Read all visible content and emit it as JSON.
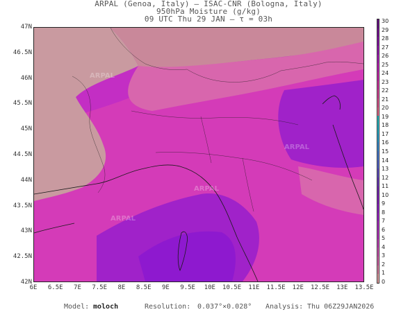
{
  "header": {
    "line1": "ARPAL (Genoa, Italy)  —  ISAC-CNR (Bologna, Italy)",
    "line2": "950hPa Moisture (g/kg)",
    "line3": "09 UTC Thu 29 JAN  —  τ = 03h"
  },
  "map": {
    "lat_labels": [
      "47N",
      "46.5N",
      "46N",
      "45.5N",
      "45N",
      "44.5N",
      "44N",
      "43.5N",
      "43N",
      "42.5N",
      "42N"
    ],
    "lon_labels": [
      "6E",
      "6.5E",
      "7E",
      "7.5E",
      "8E",
      "8.5E",
      "9E",
      "9.5E",
      "10E",
      "10.5E",
      "11E",
      "11.5E",
      "12E",
      "12.5E",
      "13E",
      "13.5E"
    ],
    "watermark": "ARPAL",
    "colors": {
      "darkest": "#8e19cf",
      "dark": "#a022c9",
      "mid": "#c32ec4",
      "magenta": "#d43bb8",
      "pink": "#d866ad",
      "light": "#c9889a",
      "palest": "#c99aa0"
    }
  },
  "colorbar": {
    "labels": [
      "30",
      "29",
      "28",
      "27",
      "26",
      "25",
      "24",
      "23",
      "22",
      "21",
      "20",
      "19",
      "18",
      "17",
      "16",
      "15",
      "14",
      "13",
      "12",
      "11",
      "10",
      "9",
      "8",
      "7",
      "6",
      "5",
      "4",
      "3",
      "2",
      "1",
      "0"
    ],
    "colors": [
      "#6a0f8a",
      "#7a0f9a",
      "#8a12aa",
      "#9c18b8",
      "#b01fc0",
      "#c423be",
      "#d12ab4",
      "#da37a8",
      "#e0489e",
      "#e65a95",
      "#ec6e8e",
      "#2ac0c7",
      "#28b7cf",
      "#2fa7d6",
      "#3c93d8",
      "#4a7fd8",
      "#5769d3",
      "#6250c8",
      "#6d3ac0",
      "#7a28bb",
      "#8820c4",
      "#9522cd",
      "#a326d0",
      "#b02ecb",
      "#bd36c7",
      "#c944c0",
      "#d256b6",
      "#d968ad",
      "#df85a5",
      "#e4a3a4"
    ]
  },
  "footer": {
    "model_label": "Model:",
    "model_value": "moloch",
    "resolution_label": "Resolution:",
    "resolution_value": "0.037°×0.028°",
    "analysis_label": "Analysis:",
    "analysis_value": "Thu 06Z29JAN2026"
  }
}
